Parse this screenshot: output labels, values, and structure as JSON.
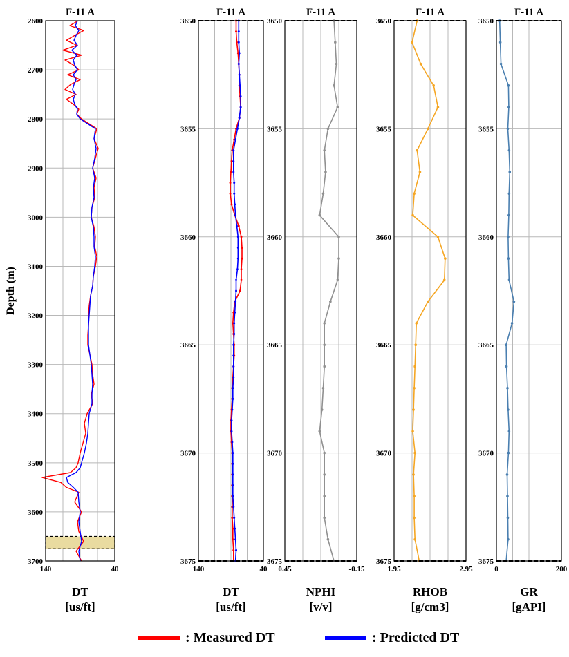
{
  "chart_data": [
    {
      "type": "line",
      "title": "F-11 A",
      "ylabel": "Depth (m)",
      "xlabel": "DT",
      "xunit": "[us/ft]",
      "xlim": [
        140,
        40
      ],
      "ylim": [
        2600,
        3700
      ],
      "yticks": [
        2600,
        2700,
        2800,
        2900,
        3000,
        3100,
        3200,
        3300,
        3400,
        3500,
        3600,
        3700
      ],
      "xticks": [
        140,
        40
      ],
      "highlight_depth": [
        3650,
        3675
      ],
      "series": [
        {
          "name": "Measured DT",
          "color": "#ff0000",
          "depth": [
            2600,
            2610,
            2620,
            2630,
            2640,
            2650,
            2660,
            2670,
            2680,
            2690,
            2700,
            2710,
            2720,
            2730,
            2740,
            2750,
            2760,
            2770,
            2780,
            2790,
            2800,
            2820,
            2840,
            2860,
            2880,
            2900,
            2920,
            2940,
            2960,
            2980,
            3000,
            3020,
            3040,
            3060,
            3080,
            3100,
            3120,
            3140,
            3160,
            3180,
            3200,
            3220,
            3240,
            3260,
            3280,
            3300,
            3320,
            3340,
            3360,
            3380,
            3400,
            3420,
            3440,
            3460,
            3480,
            3500,
            3510,
            3520,
            3530,
            3540,
            3550,
            3560,
            3580,
            3600,
            3620,
            3640,
            3660,
            3680,
            3700
          ],
          "dt": [
            93,
            105,
            85,
            98,
            110,
            95,
            115,
            88,
            112,
            100,
            92,
            108,
            90,
            104,
            112,
            96,
            110,
            100,
            92,
            95,
            88,
            66,
            70,
            64,
            68,
            72,
            67,
            70,
            69,
            73,
            74,
            70,
            68,
            69,
            66,
            68,
            71,
            72,
            75,
            77,
            78,
            78,
            79,
            79,
            76,
            73,
            72,
            70,
            74,
            72,
            80,
            84,
            82,
            86,
            90,
            93,
            96,
            104,
            145,
            118,
            110,
            92,
            98,
            88,
            94,
            92,
            85,
            96,
            88
          ]
        },
        {
          "name": "Predicted DT",
          "color": "#0000ff",
          "depth": [
            2600,
            2610,
            2620,
            2630,
            2640,
            2650,
            2660,
            2670,
            2680,
            2690,
            2700,
            2710,
            2720,
            2730,
            2740,
            2750,
            2760,
            2770,
            2780,
            2790,
            2800,
            2820,
            2840,
            2860,
            2880,
            2900,
            2920,
            2940,
            2960,
            2980,
            3000,
            3020,
            3040,
            3060,
            3080,
            3100,
            3120,
            3140,
            3160,
            3180,
            3200,
            3220,
            3240,
            3260,
            3280,
            3300,
            3320,
            3340,
            3360,
            3380,
            3400,
            3420,
            3440,
            3460,
            3480,
            3500,
            3510,
            3520,
            3530,
            3540,
            3550,
            3560,
            3580,
            3600,
            3620,
            3640,
            3660,
            3680,
            3700
          ],
          "dt": [
            94,
            97,
            92,
            96,
            99,
            94,
            102,
            95,
            100,
            98,
            94,
            100,
            96,
            99,
            101,
            97,
            100,
            98,
            94,
            95,
            90,
            68,
            70,
            67,
            69,
            72,
            69,
            71,
            70,
            73,
            74,
            71,
            70,
            70,
            68,
            69,
            71,
            72,
            75,
            76,
            77,
            78,
            78,
            78,
            76,
            74,
            73,
            72,
            73,
            73,
            77,
            78,
            79,
            81,
            84,
            88,
            90,
            96,
            110,
            108,
            100,
            93,
            92,
            90,
            92,
            90,
            88,
            92,
            90
          ]
        }
      ]
    },
    {
      "type": "line",
      "title": "F-11 A",
      "xlabel": "DT",
      "xunit": "[us/ft]",
      "xlim": [
        140,
        40
      ],
      "ylim": [
        3650,
        3675
      ],
      "yticks": [
        3650,
        3655,
        3660,
        3665,
        3670,
        3675
      ],
      "xticks": [
        140,
        40
      ],
      "series": [
        {
          "name": "Measured DT",
          "color": "#ff0000",
          "depth": [
            3650.0,
            3650.5,
            3651.0,
            3651.5,
            3652.0,
            3652.5,
            3653.0,
            3653.5,
            3654.0,
            3654.5,
            3655.0,
            3655.5,
            3656.0,
            3656.5,
            3657.0,
            3657.5,
            3658.0,
            3658.5,
            3659.0,
            3659.5,
            3660.0,
            3660.5,
            3661.0,
            3661.5,
            3662.0,
            3662.5,
            3663.0,
            3663.5,
            3664.0,
            3664.5,
            3665.0,
            3665.5,
            3666.0,
            3666.5,
            3667.0,
            3667.5,
            3668.0,
            3668.5,
            3669.0,
            3669.5,
            3670.0,
            3670.5,
            3671.0,
            3671.5,
            3672.0,
            3672.5,
            3673.0,
            3673.5,
            3674.0,
            3674.5,
            3675.0
          ],
          "dt": [
            82,
            82,
            81,
            79,
            78,
            77,
            77,
            76,
            75,
            77,
            82,
            85,
            88,
            89,
            90,
            91,
            91,
            89,
            84,
            78,
            74,
            73,
            73,
            74,
            74,
            76,
            84,
            86,
            87,
            86,
            85,
            85,
            86,
            87,
            88,
            88,
            89,
            90,
            90,
            89,
            88,
            88,
            88,
            88,
            88,
            88,
            88,
            87,
            87,
            86,
            86
          ]
        },
        {
          "name": "Predicted DT",
          "color": "#0000ff",
          "depth": [
            3650.0,
            3650.5,
            3651.0,
            3651.5,
            3652.0,
            3652.5,
            3653.0,
            3653.5,
            3654.0,
            3654.5,
            3655.0,
            3655.5,
            3656.0,
            3656.5,
            3657.0,
            3657.5,
            3658.0,
            3658.5,
            3659.0,
            3659.5,
            3660.0,
            3660.5,
            3661.0,
            3661.5,
            3662.0,
            3662.5,
            3663.0,
            3663.5,
            3664.0,
            3664.5,
            3665.0,
            3665.5,
            3666.0,
            3666.5,
            3667.0,
            3667.5,
            3668.0,
            3668.5,
            3669.0,
            3669.5,
            3670.0,
            3670.5,
            3671.0,
            3671.5,
            3672.0,
            3672.5,
            3673.0,
            3673.5,
            3674.0,
            3674.5,
            3675.0
          ],
          "dt": [
            78,
            78,
            78,
            77,
            78,
            77,
            76,
            75,
            75,
            77,
            80,
            83,
            86,
            86,
            86,
            85,
            85,
            84,
            83,
            81,
            79,
            79,
            79,
            80,
            82,
            82,
            83,
            84,
            85,
            85,
            86,
            86,
            86,
            86,
            87,
            87,
            88,
            89,
            89,
            88,
            87,
            87,
            87,
            87,
            87,
            86,
            85,
            84,
            83,
            82,
            83
          ]
        }
      ]
    },
    {
      "type": "line",
      "title": "F-11 A",
      "xlabel": "NPHI",
      "xunit": "[v/v]",
      "xlim": [
        0.45,
        -0.15
      ],
      "xticks": [
        0.45,
        -0.15
      ],
      "ylim": [
        3650,
        3675
      ],
      "yticks": [
        3650,
        3655,
        3660,
        3665,
        3670,
        3675
      ],
      "series": [
        {
          "name": "NPHI",
          "color": "#909090",
          "depth": [
            3650,
            3651,
            3652,
            3653,
            3654,
            3655,
            3656,
            3657,
            3658,
            3659,
            3660,
            3661,
            3662,
            3663,
            3664,
            3665,
            3666,
            3667,
            3668,
            3669,
            3670,
            3671,
            3672,
            3673,
            3674,
            3675
          ],
          "values": [
            0.04,
            0.03,
            0.02,
            0.04,
            0.01,
            0.09,
            0.12,
            0.11,
            0.13,
            0.16,
            0.0,
            0.0,
            0.01,
            0.07,
            0.12,
            0.12,
            0.12,
            0.13,
            0.14,
            0.16,
            0.12,
            0.12,
            0.12,
            0.12,
            0.09,
            0.04
          ]
        }
      ]
    },
    {
      "type": "line",
      "title": "F-11 A",
      "xlabel": "RHOB",
      "xunit": "[g/cm3]",
      "xlim": [
        1.95,
        2.95
      ],
      "xticks": [
        1.95,
        2.95
      ],
      "ylim": [
        3650,
        3675
      ],
      "yticks": [
        3650,
        3655,
        3660,
        3665,
        3670,
        3675
      ],
      "series": [
        {
          "name": "RHOB",
          "color": "#f5a623",
          "depth": [
            3650,
            3651,
            3652,
            3653,
            3654,
            3655,
            3656,
            3657,
            3658,
            3659,
            3660,
            3661,
            3662,
            3663,
            3664,
            3665,
            3666,
            3667,
            3668,
            3669,
            3670,
            3671,
            3672,
            3673,
            3674,
            3675
          ],
          "values": [
            2.27,
            2.2,
            2.32,
            2.5,
            2.56,
            2.42,
            2.27,
            2.31,
            2.23,
            2.21,
            2.56,
            2.66,
            2.65,
            2.42,
            2.26,
            2.25,
            2.24,
            2.23,
            2.22,
            2.21,
            2.24,
            2.22,
            2.23,
            2.23,
            2.24,
            2.3
          ]
        }
      ]
    },
    {
      "type": "line",
      "title": "F-11 A",
      "xlabel": "GR",
      "xunit": "[gAPI]",
      "xlim": [
        0,
        200
      ],
      "xticks": [
        0,
        200
      ],
      "ylim": [
        3650,
        3675
      ],
      "yticks": [
        3650,
        3655,
        3660,
        3665,
        3670,
        3675
      ],
      "series": [
        {
          "name": "GR",
          "color": "#4a7fb0",
          "depth": [
            3650,
            3651,
            3652,
            3653,
            3654,
            3655,
            3656,
            3657,
            3658,
            3659,
            3660,
            3661,
            3662,
            3663,
            3664,
            3665,
            3666,
            3667,
            3668,
            3669,
            3670,
            3671,
            3672,
            3673,
            3674,
            3675
          ],
          "values": [
            10,
            12,
            14,
            37,
            38,
            35,
            39,
            41,
            39,
            38,
            36,
            37,
            39,
            54,
            48,
            30,
            31,
            34,
            36,
            39,
            37,
            33,
            34,
            35,
            36,
            30
          ]
        }
      ]
    }
  ],
  "legend": [
    {
      "label": ": Measured DT",
      "color": "#ff0000"
    },
    {
      "label": ": Predicted DT",
      "color": "#0000ff"
    }
  ]
}
